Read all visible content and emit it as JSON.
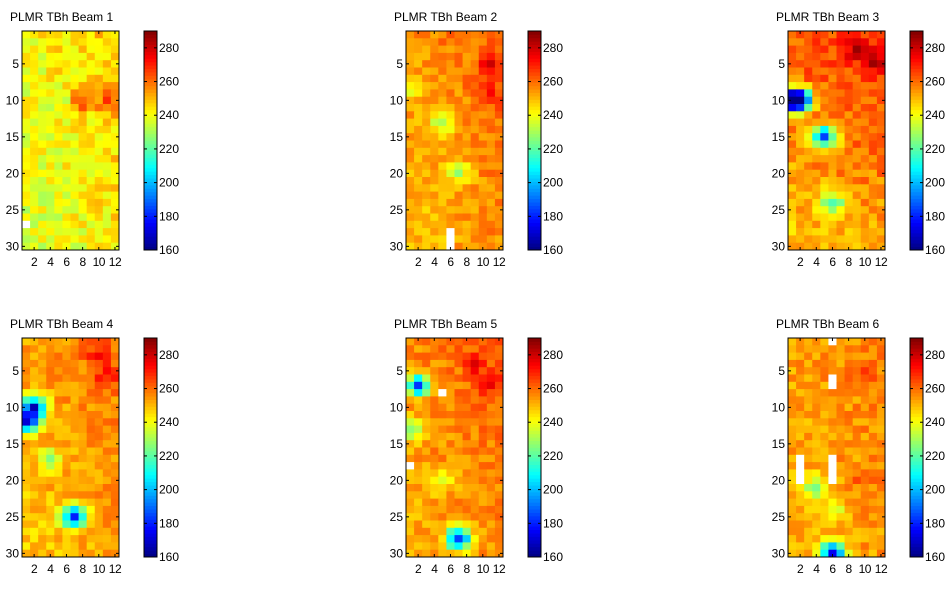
{
  "colorbar": {
    "min": 160,
    "max": 290,
    "ticks": [
      160,
      180,
      200,
      220,
      240,
      260,
      280
    ]
  },
  "axes": {
    "x_ticks": [
      2,
      4,
      6,
      8,
      10,
      12
    ],
    "y_ticks": [
      5,
      10,
      15,
      20,
      25,
      30
    ],
    "columns": 12,
    "rows": 30
  },
  "chart_data": [
    {
      "type": "heatmap",
      "title": "PLMR TBh Beam 1",
      "colormap": "jet",
      "x_range": [
        1,
        12
      ],
      "y_range": [
        1,
        30
      ],
      "base": 242,
      "row_gradient": -0.2,
      "col_gradient": 0.7,
      "variation": 8,
      "lows": [
        [
          5,
          10,
          233
        ],
        [
          5,
          15,
          238
        ],
        [
          2,
          5,
          238
        ]
      ],
      "highs": [
        [
          8,
          10,
          262
        ],
        [
          11,
          10,
          258
        ]
      ],
      "missing": [
        [
          1,
          27
        ]
      ]
    },
    {
      "type": "heatmap",
      "title": "PLMR TBh Beam 2",
      "colormap": "jet",
      "x_range": [
        1,
        12
      ],
      "y_range": [
        1,
        30
      ],
      "base": 255,
      "row_gradient": -0.2,
      "col_gradient": 0.6,
      "variation": 6,
      "lows": [
        [
          5,
          13,
          228
        ],
        [
          7,
          20,
          232
        ],
        [
          1,
          8,
          238
        ]
      ],
      "highs": [
        [
          11,
          5,
          270
        ],
        [
          11,
          9,
          268
        ]
      ],
      "missing": [
        [
          6,
          28
        ],
        [
          6,
          29
        ],
        [
          6,
          30
        ]
      ]
    },
    {
      "type": "heatmap",
      "title": "PLMR TBh Beam 3",
      "colormap": "jet",
      "x_range": [
        1,
        12
      ],
      "y_range": [
        1,
        30
      ],
      "base": 258,
      "row_gradient": -0.5,
      "col_gradient": 0.4,
      "variation": 7,
      "lows": [
        [
          1,
          10,
          172
        ],
        [
          2,
          10,
          185
        ],
        [
          5,
          15,
          190
        ],
        [
          6,
          24,
          220
        ]
      ],
      "highs": [
        [
          9,
          3,
          275
        ],
        [
          11,
          5,
          275
        ]
      ],
      "missing": []
    },
    {
      "type": "heatmap",
      "title": "PLMR TBh Beam 4",
      "colormap": "jet",
      "x_range": [
        1,
        12
      ],
      "y_range": [
        1,
        30
      ],
      "base": 253,
      "row_gradient": -0.2,
      "col_gradient": 0.5,
      "variation": 6,
      "lows": [
        [
          2,
          10,
          178
        ],
        [
          1,
          12,
          182
        ],
        [
          7,
          25,
          182
        ],
        [
          4,
          17,
          232
        ]
      ],
      "highs": [
        [
          10,
          3,
          270
        ],
        [
          11,
          6,
          268
        ]
      ],
      "missing": []
    },
    {
      "type": "heatmap",
      "title": "PLMR TBh Beam 5",
      "colormap": "jet",
      "x_range": [
        1,
        12
      ],
      "y_range": [
        1,
        30
      ],
      "base": 256,
      "row_gradient": -0.2,
      "col_gradient": 0.4,
      "variation": 6,
      "lows": [
        [
          2,
          7,
          188
        ],
        [
          7,
          28,
          182
        ],
        [
          1,
          13,
          225
        ],
        [
          5,
          20,
          235
        ]
      ],
      "highs": [
        [
          9,
          4,
          272
        ],
        [
          11,
          7,
          270
        ]
      ],
      "missing": [
        [
          5,
          8
        ],
        [
          1,
          18
        ]
      ]
    },
    {
      "type": "heatmap",
      "title": "PLMR TBh Beam 6",
      "colormap": "jet",
      "x_range": [
        1,
        12
      ],
      "y_range": [
        1,
        30
      ],
      "base": 254,
      "row_gradient": -0.1,
      "col_gradient": 0.3,
      "variation": 6,
      "lows": [
        [
          6,
          30,
          178
        ],
        [
          4,
          21,
          225
        ],
        [
          6,
          24,
          235
        ]
      ],
      "highs": [
        [
          10,
          6,
          266
        ],
        [
          10,
          20,
          262
        ]
      ],
      "missing": [
        [
          6,
          1
        ],
        [
          6,
          6
        ],
        [
          6,
          7
        ],
        [
          2,
          17
        ],
        [
          2,
          18
        ],
        [
          2,
          19
        ],
        [
          2,
          20
        ],
        [
          6,
          17
        ],
        [
          6,
          18
        ],
        [
          6,
          19
        ],
        [
          6,
          20
        ]
      ]
    }
  ]
}
